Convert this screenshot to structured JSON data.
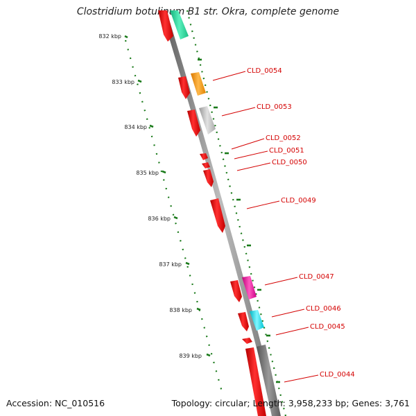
{
  "title": "Clostridium botulinum B1 str. Okra, complete genome",
  "footer": {
    "accession": "Accession: NC_010516",
    "stats": "Topology: circular; Length: 3,958,233 bp; Genes: 3,761"
  },
  "ruler_labels": [
    "832 kbp",
    "833 kbp",
    "834 kbp",
    "835 kbp",
    "836 kbp",
    "837 kbp",
    "838 kbp",
    "839 kbp"
  ],
  "gene_labels": [
    "CLD_0054",
    "CLD_0053",
    "CLD_0052",
    "CLD_0051",
    "CLD_0050",
    "CLD_0049",
    "CLD_0047",
    "CLD_0046",
    "CLD_0045",
    "CLD_0044"
  ],
  "colors": {
    "gene": "#ee0000",
    "label": "#d40000",
    "ruler": "#1a7a1a",
    "backbone": "#8c8c8c",
    "cog_teal": "#22dd99",
    "cog_orange": "#ff9900",
    "cog_lightgray": "#bbbbbb",
    "cog_magenta": "#ee1199",
    "cog_cyan": "#00ddee",
    "cog_darkgray": "#777777"
  }
}
